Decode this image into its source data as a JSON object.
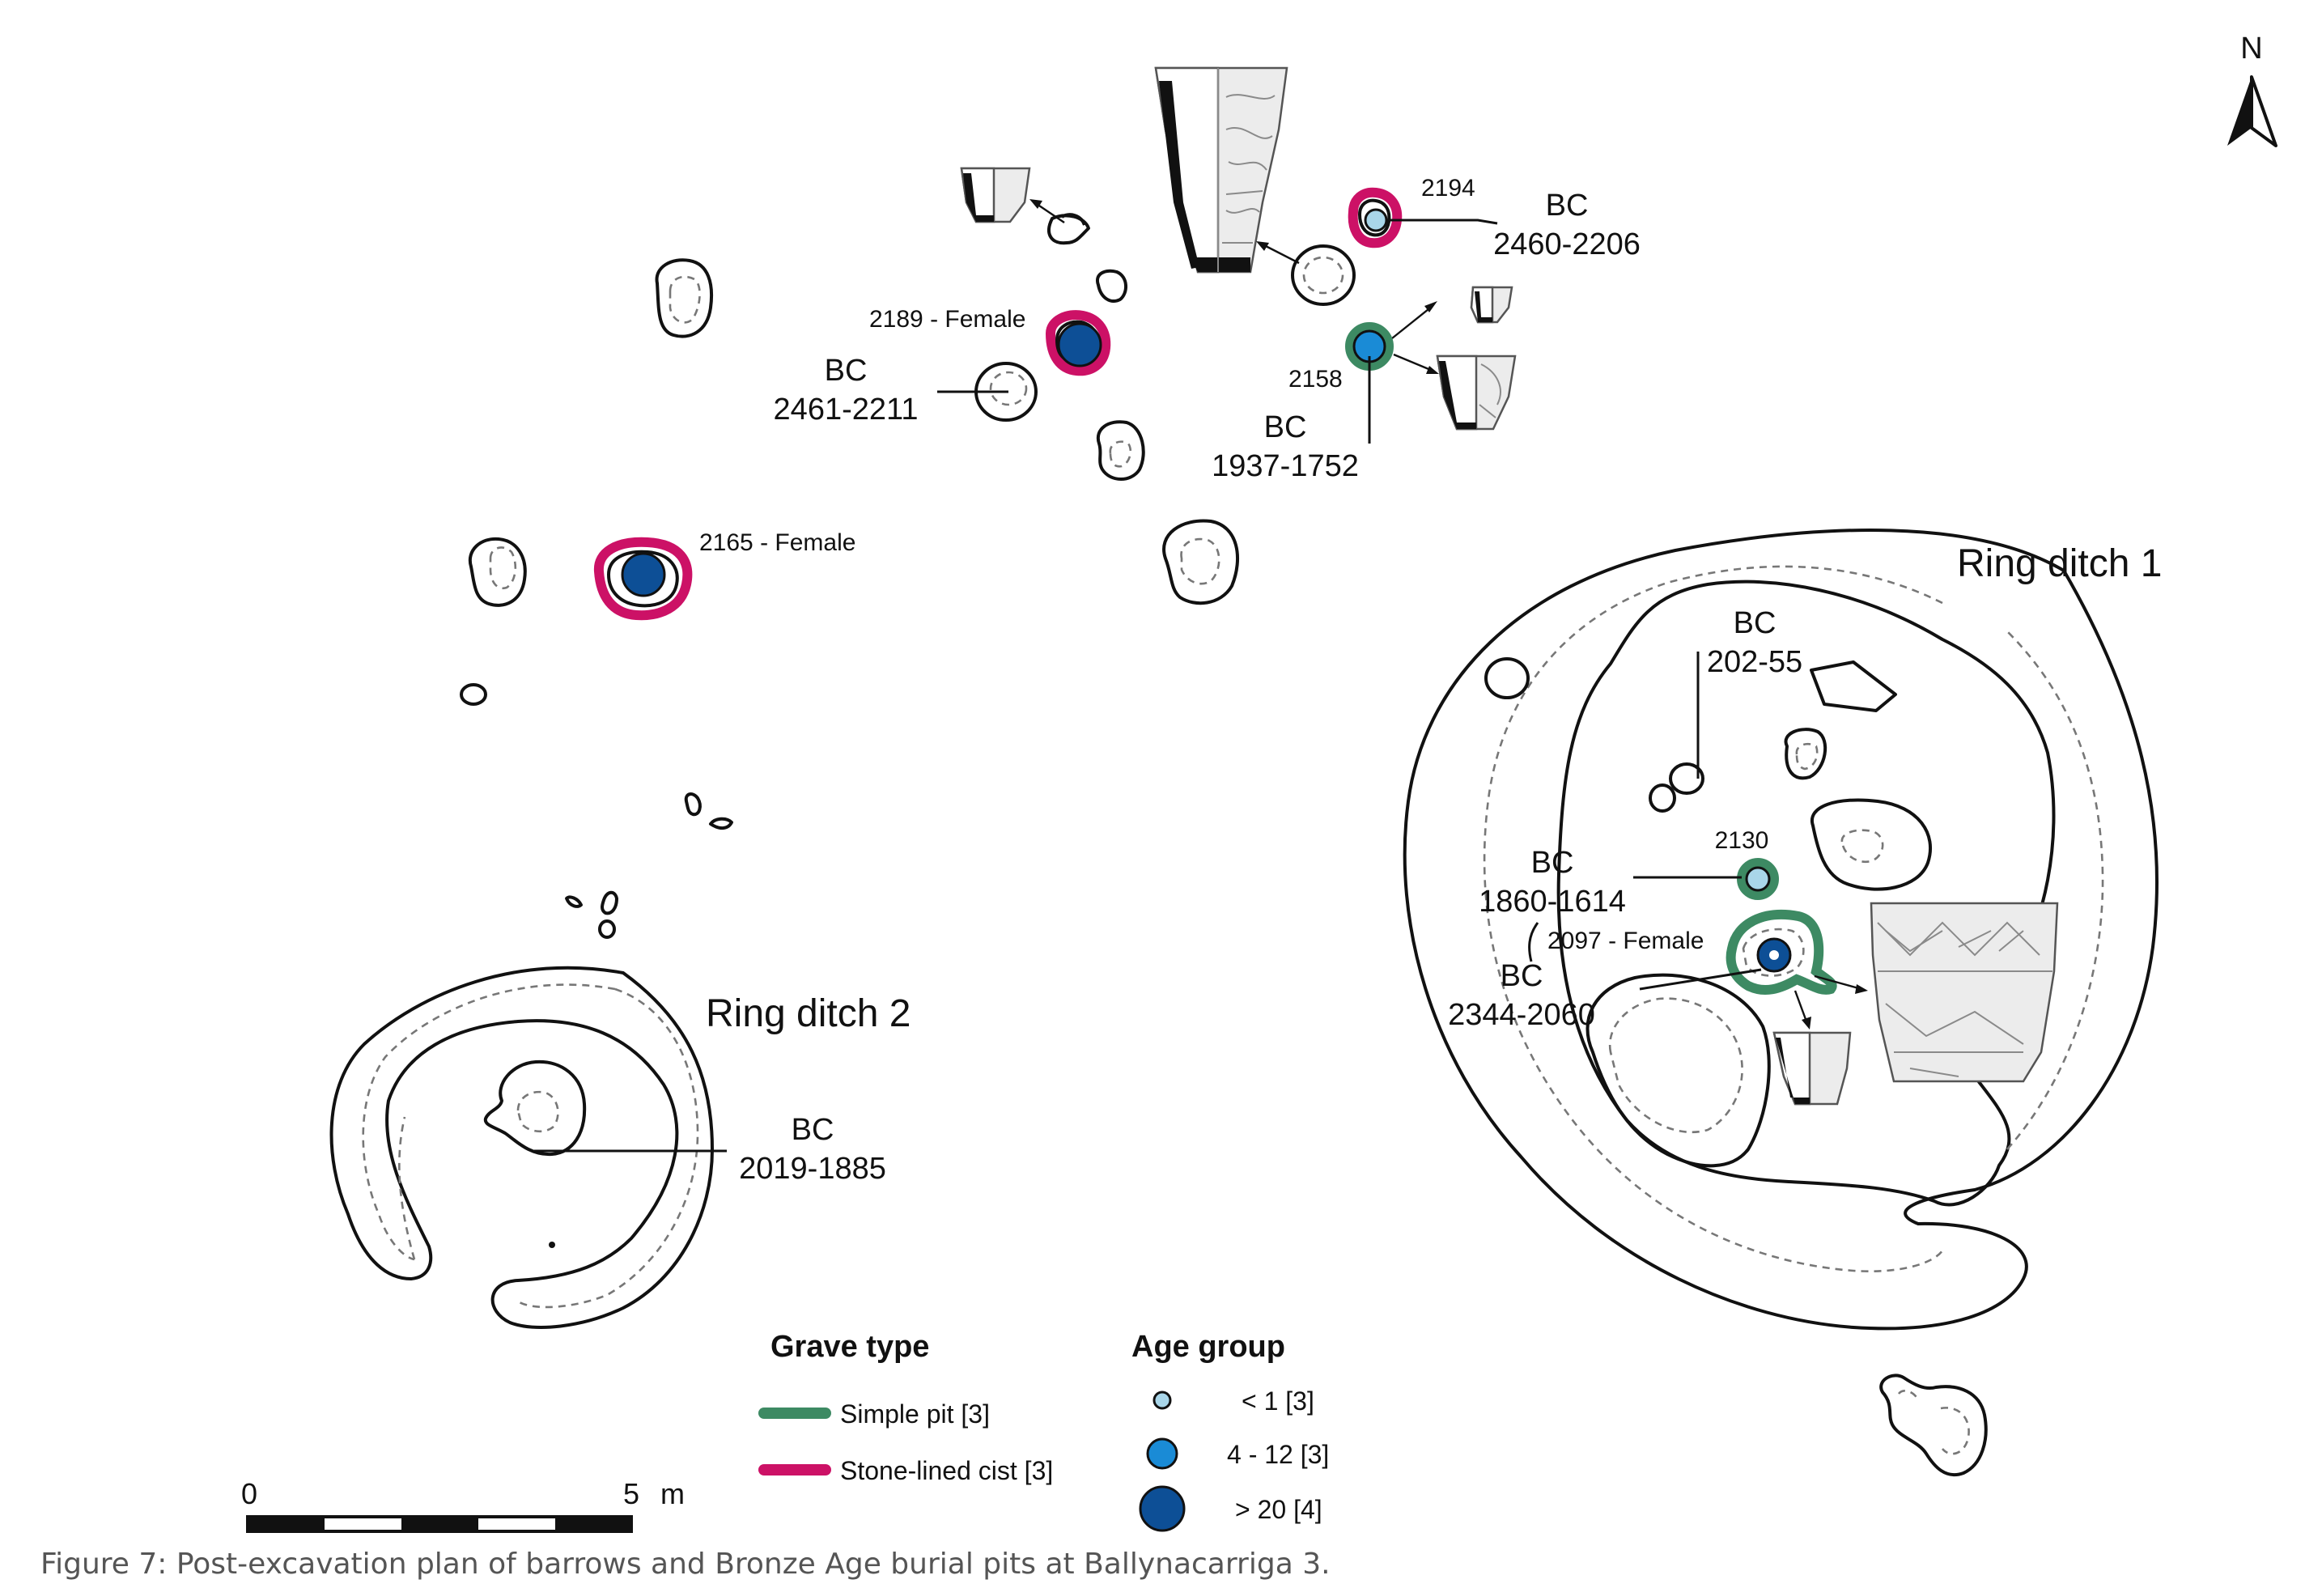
{
  "north_label": "N",
  "ring_ditches": {
    "one": "Ring ditch 1",
    "two": "Ring ditch 2"
  },
  "dates": {
    "d2194": [
      "BC",
      "2460-2206"
    ],
    "d2189": [
      "BC",
      "2461-2211"
    ],
    "d2158": [
      "BC",
      "1937-1752"
    ],
    "d202": [
      "BC",
      "202-55"
    ],
    "d2130": [
      "BC",
      "1860-1614"
    ],
    "d2097": [
      "BC",
      "2344-2060"
    ],
    "d2019": [
      "BC",
      "2019-1885"
    ]
  },
  "burials": {
    "b2194": "2194",
    "b2189": "2189 - Female",
    "b2158": "2158",
    "b2165": "2165 - Female",
    "b2130": "2130",
    "b2097": "2097 - Female"
  },
  "legend": {
    "grave_type_title": "Grave type",
    "grave_types": [
      {
        "label": "Simple pit [3]",
        "color": "#3d8a63"
      },
      {
        "label": "Stone-lined cist [3]",
        "color": "#cc1166"
      }
    ],
    "age_group_title": "Age group",
    "age_groups": [
      {
        "label": "< 1 [3]",
        "color": "#a9d6e9"
      },
      {
        "label": "4 - 12 [3]",
        "color": "#1a8bd6"
      },
      {
        "label": "> 20 [4]",
        "color": "#0d4f96"
      }
    ]
  },
  "scale": {
    "start": "0",
    "end": "5",
    "unit": "m"
  },
  "caption": "Figure 7:   Post-excavation plan of barrows and Bronze Age burial pits at Ballynacarriga 3.",
  "colors": {
    "simple_pit": "#3d8a63",
    "stone_lined_cist": "#cc1166",
    "age_infant": "#a9d6e9",
    "age_child": "#1a8bd6",
    "age_adult": "#0d4f96"
  },
  "icons": [
    "north-arrow-icon",
    "pottery-vessel-icon"
  ]
}
